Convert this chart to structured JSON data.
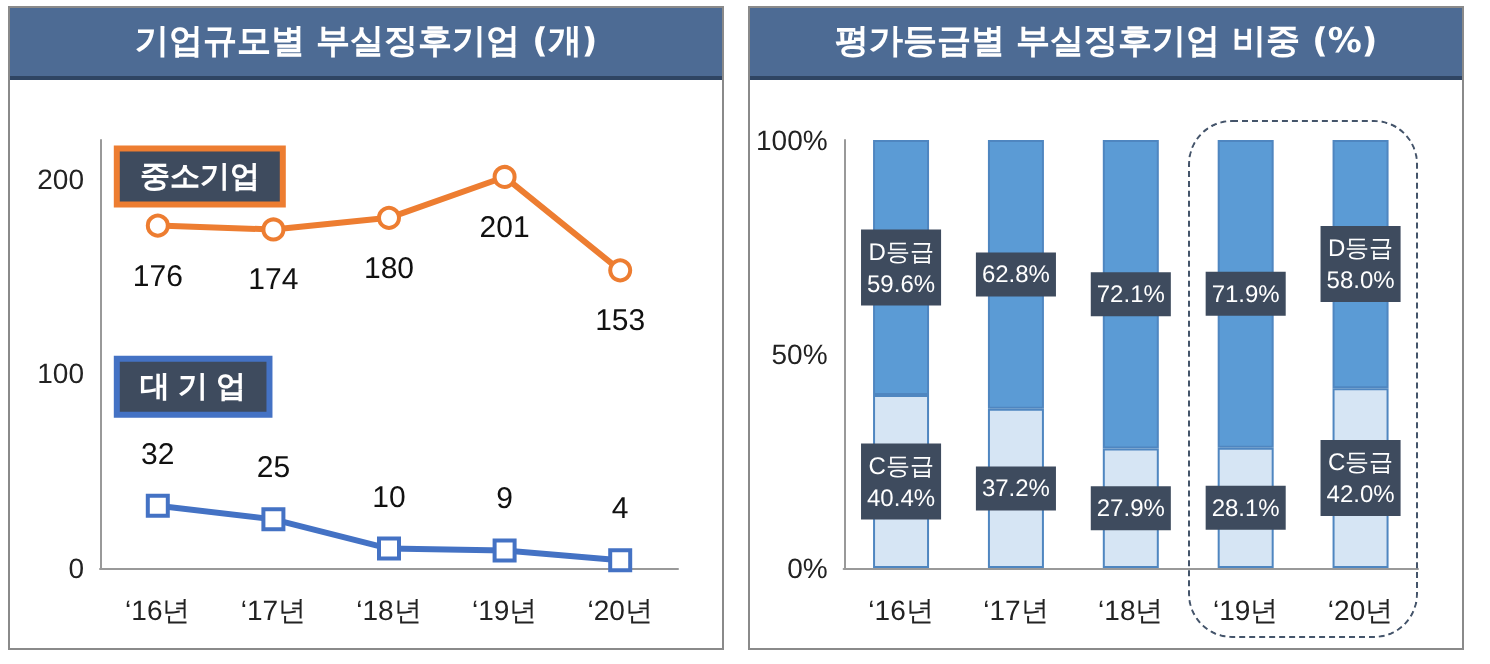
{
  "chart_data": [
    {
      "type": "line",
      "title": "기업규모별 부실징후기업 (개)",
      "categories": [
        "‘16년",
        "‘17년",
        "‘18년",
        "‘19년",
        "‘20년"
      ],
      "series": [
        {
          "name": "중소기업",
          "color": "#ed7d31",
          "marker": "circle",
          "values": [
            176,
            174,
            180,
            201,
            153
          ]
        },
        {
          "name": "대 기 업",
          "color": "#4472c4",
          "marker": "square",
          "values": [
            32,
            25,
            10,
            9,
            4
          ]
        }
      ],
      "ylim": [
        0,
        220
      ],
      "yticks": [
        0,
        100,
        200
      ],
      "data_labels": true
    },
    {
      "type": "bar",
      "title": "평가등급별 부실징후기업 비중 (%)",
      "categories": [
        "‘16년",
        "‘17년",
        "‘18년",
        "‘19년",
        "‘20년"
      ],
      "stacked": true,
      "series": [
        {
          "color": "#d6e5f4",
          "values": [
            40.4,
            37.2,
            27.9,
            28.1,
            42.0
          ],
          "value_labels": [
            "C등급\n40.4%",
            "37.2%",
            "27.9%",
            "28.1%",
            "C등급\n42.0%"
          ]
        },
        {
          "color": "#5b9bd5",
          "values": [
            59.6,
            62.8,
            72.1,
            71.9,
            58.0
          ],
          "value_labels": [
            "D등급\n59.6%",
            "62.8%",
            "72.1%",
            "71.9%",
            "D등급\n58.0%"
          ]
        }
      ],
      "ylim": [
        0,
        100
      ],
      "yticks": [
        {
          "value": 0,
          "label": "0%"
        },
        {
          "value": 50,
          "label": "50%"
        },
        {
          "value": 100,
          "label": "100%"
        }
      ]
    }
  ]
}
